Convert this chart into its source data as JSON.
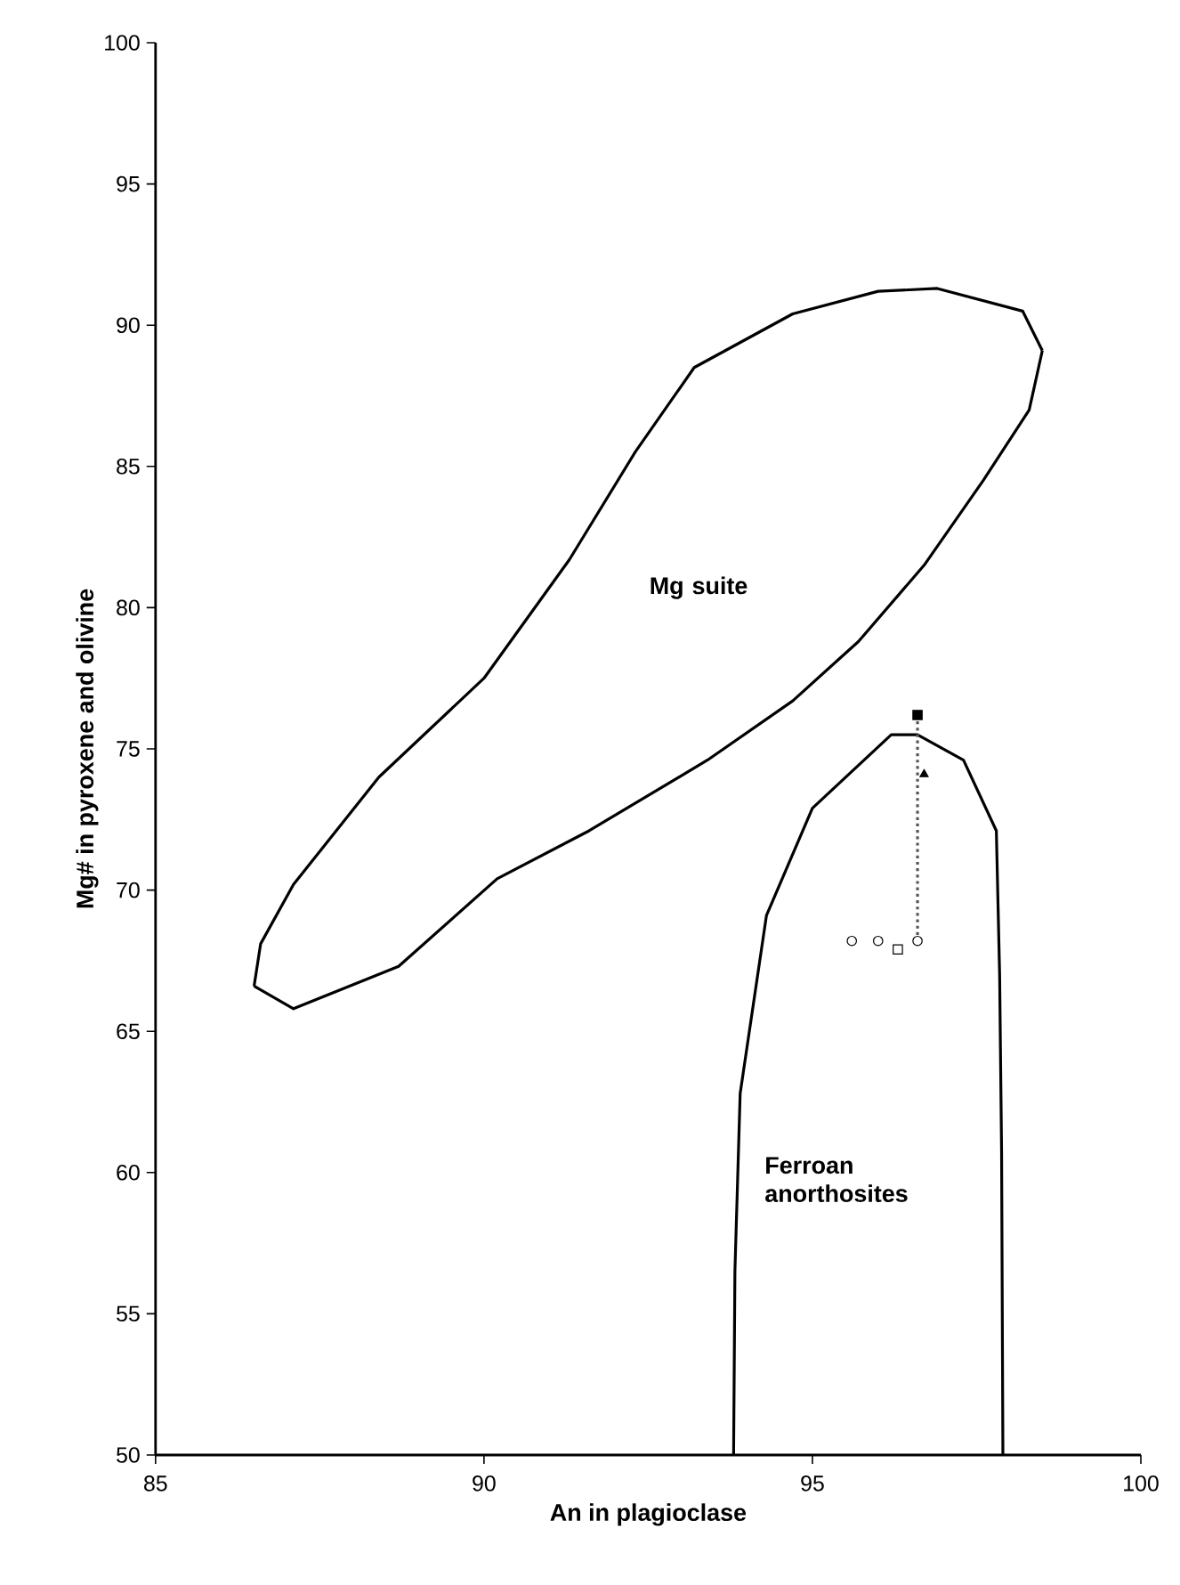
{
  "chart_data": {
    "type": "scatter",
    "xlabel": "An in plagioclase",
    "ylabel": "Mg# in pyroxene and olivine",
    "xlim": [
      85,
      100
    ],
    "xticks": [
      85,
      90,
      95,
      100
    ],
    "ylim": [
      50,
      100
    ],
    "yticks": [
      50,
      55,
      60,
      65,
      70,
      75,
      80,
      85,
      90,
      95,
      100
    ],
    "grid": false,
    "series": [
      {
        "type": "line",
        "marker": "none",
        "line_style": "solid",
        "color": "#000000",
        "x": [
          86.5,
          86.6,
          87.1,
          88.4,
          90.0,
          91.3,
          92.3,
          93.2,
          94.7,
          96.0,
          96.9,
          98.2,
          98.5
        ],
        "values": [
          66.6,
          68.1,
          70.2,
          74.0,
          77.5,
          81.7,
          85.5,
          88.5,
          90.4,
          91.2,
          91.3,
          90.5,
          89.1
        ]
      },
      {
        "type": "line",
        "marker": "none",
        "line_style": "solid",
        "color": "#000000",
        "x": [
          86.5,
          87.1,
          88.7,
          90.2,
          91.6,
          93.4,
          94.7,
          95.7,
          96.7,
          97.6,
          98.3,
          98.5
        ],
        "values": [
          66.6,
          65.8,
          67.3,
          70.4,
          72.1,
          74.6,
          76.7,
          78.8,
          81.5,
          84.5,
          87.0,
          89.1
        ]
      },
      {
        "type": "line",
        "marker": "none",
        "line_style": "solid",
        "color": "#000000",
        "x": [
          93.8,
          93.82,
          93.9,
          94.3,
          95.0,
          96.2,
          96.6,
          97.3,
          97.8,
          97.85,
          97.88,
          97.9
        ],
        "values": [
          50.0,
          56.5,
          62.8,
          69.1,
          72.9,
          75.5,
          75.5,
          74.6,
          72.1,
          67.0,
          60.7,
          50.0
        ]
      },
      {
        "type": "line",
        "marker": "none",
        "line_style": "dotted",
        "color": "#555555",
        "x": [
          96.6,
          96.6
        ],
        "values": [
          76.2,
          68.2
        ]
      },
      {
        "marker": "circle",
        "color": "#ffffff",
        "x": [
          95.6,
          96.0,
          96.6
        ],
        "values": [
          68.2,
          68.2,
          68.2
        ]
      },
      {
        "marker": "square",
        "color": "#ffffff",
        "x": [
          96.3
        ],
        "values": [
          67.9
        ]
      },
      {
        "marker": "square",
        "color": "#000000",
        "x": [
          96.6
        ],
        "values": [
          76.2
        ]
      },
      {
        "marker": "triangle",
        "color": "#000000",
        "x": [
          96.7
        ],
        "values": [
          74.1
        ]
      }
    ],
    "annotations": [
      "Mg suite",
      "Ferroan anorthosites"
    ]
  }
}
